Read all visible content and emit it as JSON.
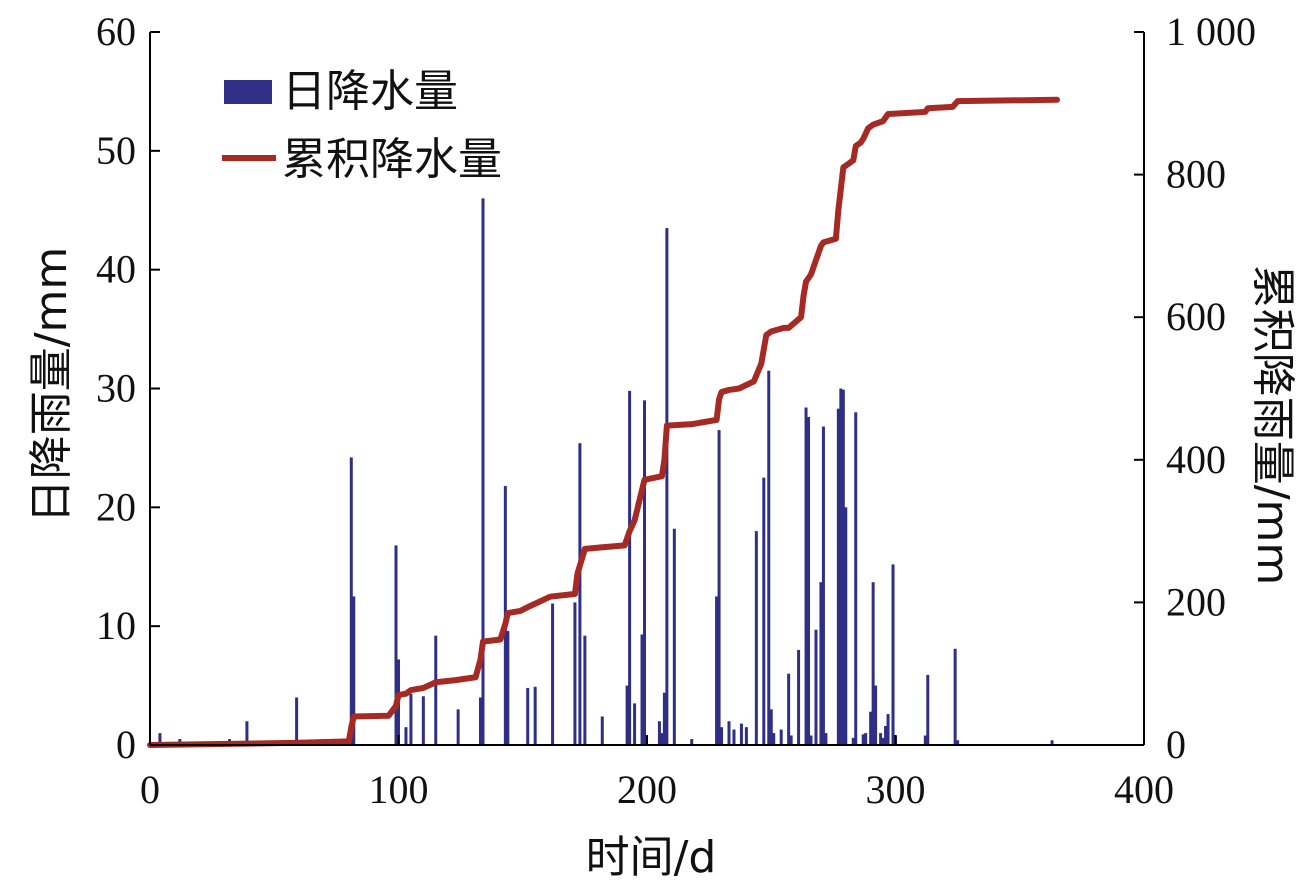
{
  "chart_data": {
    "type": "bar+line",
    "title": "",
    "xlabel": "时间/d",
    "ylabel": "日降雨量/mm",
    "y2label": "累积降雨量/mm",
    "xlim": [
      0,
      400
    ],
    "ylim": [
      0,
      60
    ],
    "y2lim": [
      0,
      1000
    ],
    "x_ticks": [
      "0",
      "100",
      "200",
      "300",
      "400"
    ],
    "y_ticks": [
      "0",
      "10",
      "20",
      "30",
      "40",
      "50",
      "60"
    ],
    "y2_ticks": [
      "0",
      "200",
      "400",
      "600",
      "800",
      "1 000"
    ],
    "legend_position": "top-left",
    "grid": false,
    "colors": {
      "daily": "#2e2f85",
      "cumulative": "#a52a23",
      "axis": "#000000"
    },
    "series": [
      {
        "name": "日降水量",
        "type": "bar",
        "axis": "left",
        "x": [
          4,
          12,
          32,
          39,
          59,
          81,
          82,
          99,
          100,
          103,
          105,
          110,
          115,
          124,
          133,
          134,
          143,
          144,
          152,
          155,
          162,
          171,
          173,
          175,
          182,
          192,
          193,
          195,
          198,
          199,
          205,
          206,
          207,
          208,
          211,
          218,
          228,
          229,
          230,
          233,
          235,
          238,
          240,
          244,
          247,
          249,
          250,
          251,
          254,
          257,
          258,
          261,
          264,
          265,
          266,
          268,
          270,
          271,
          272,
          277,
          278,
          279,
          280,
          283,
          284,
          287,
          288,
          290,
          291,
          292,
          294,
          295,
          296,
          297,
          299,
          300,
          312,
          313,
          324,
          325,
          363
        ],
        "values": [
          1,
          0.5,
          0.5,
          2,
          4,
          24.2,
          12.5,
          16.8,
          7.2,
          1.5,
          4.3,
          4.1,
          9.2,
          3,
          4,
          46,
          21.8,
          9.6,
          4.8,
          4.9,
          11.9,
          12,
          25.4,
          9.2,
          2.4,
          5,
          29.8,
          3.5,
          9.3,
          29,
          2,
          1,
          4.4,
          43.5,
          18.2,
          0.5,
          12.5,
          26.5,
          1.5,
          2,
          1.3,
          1.8,
          1.5,
          18,
          22.5,
          31.5,
          3,
          1,
          1.3,
          6,
          0.8,
          8,
          28.4,
          27.6,
          0.8,
          9.7,
          13.7,
          26.8,
          1,
          28.3,
          30,
          29.9,
          20,
          0.6,
          28,
          0.9,
          1,
          2.8,
          13.7,
          5,
          1,
          0.6,
          1.6,
          2.6,
          15.2,
          0.8,
          0.8,
          5.9,
          8.1,
          0.4,
          0.4
        ]
      },
      {
        "name": "累积降水量",
        "type": "line",
        "axis": "right",
        "x": [
          0,
          58,
          80,
          81,
          82,
          96,
          99,
          100,
          103,
          105,
          110,
          115,
          123,
          131,
          133,
          134,
          141,
          143,
          144,
          149,
          153,
          161,
          171,
          172,
          175,
          181,
          191,
          193,
          195,
          199,
          206,
          207,
          208,
          218,
          228,
          229,
          230,
          233,
          237,
          243,
          246,
          248,
          250,
          255,
          257,
          262,
          263,
          264,
          266,
          268,
          270,
          271,
          272,
          276,
          277,
          279,
          281,
          283,
          284,
          286,
          287,
          289,
          291,
          295,
          297,
          312,
          313,
          323,
          325,
          365
        ],
        "values": [
          0,
          3,
          5,
          25,
          40,
          41,
          55,
          70,
          72,
          77,
          80,
          88,
          91,
          95,
          120,
          145,
          148,
          170,
          185,
          188,
          195,
          208,
          212,
          240,
          275,
          277,
          280,
          300,
          315,
          372,
          377,
          400,
          448,
          450,
          456,
          485,
          495,
          498,
          500,
          510,
          535,
          575,
          580,
          585,
          585,
          600,
          630,
          650,
          660,
          680,
          700,
          705,
          706,
          710,
          750,
          810,
          815,
          820,
          840,
          845,
          850,
          865,
          870,
          875,
          885,
          888,
          893,
          895,
          903,
          905
        ]
      }
    ]
  }
}
